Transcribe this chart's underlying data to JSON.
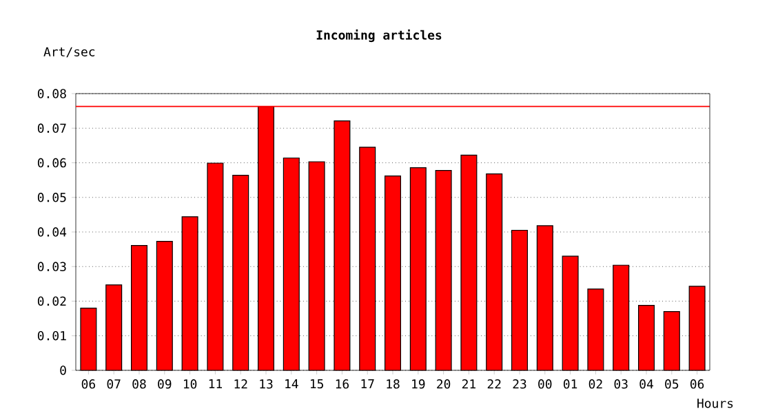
{
  "chart_data": {
    "type": "bar",
    "title": "Incoming articles",
    "ylabel": "Art/sec",
    "xlabel": "Hours",
    "categories": [
      "06",
      "07",
      "08",
      "09",
      "10",
      "11",
      "12",
      "13",
      "14",
      "15",
      "16",
      "17",
      "18",
      "19",
      "20",
      "21",
      "22",
      "23",
      "00",
      "01",
      "02",
      "03",
      "04",
      "05",
      "06"
    ],
    "values": [
      0.018,
      0.0247,
      0.0361,
      0.0373,
      0.0444,
      0.0599,
      0.0564,
      0.0763,
      0.0614,
      0.0603,
      0.0721,
      0.0645,
      0.0562,
      0.0586,
      0.0578,
      0.0622,
      0.0568,
      0.0405,
      0.0418,
      0.033,
      0.0235,
      0.0304,
      0.0188,
      0.017,
      0.0243
    ],
    "color": "#ff0000",
    "ylim": [
      0,
      0.08
    ],
    "yticks": [
      0,
      0.01,
      0.02,
      0.03,
      0.04,
      0.05,
      0.06,
      0.07,
      0.08
    ],
    "grid": "y",
    "ref_lines": [
      {
        "axis": "y",
        "value": 0.0763,
        "color": "#ff0000"
      }
    ]
  }
}
